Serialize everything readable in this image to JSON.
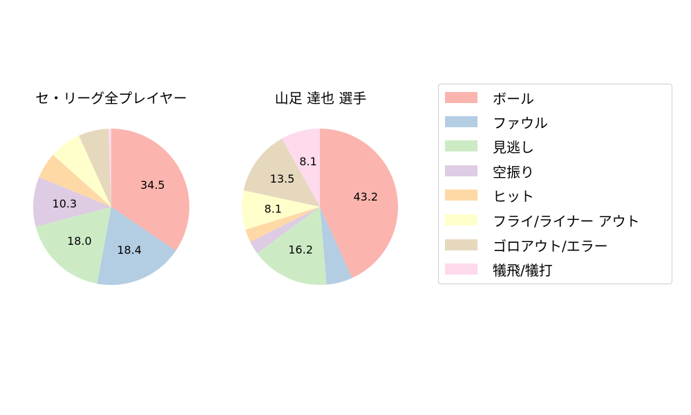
{
  "chart_data": [
    {
      "type": "pie",
      "title": "セ・リーグ全プレイヤー",
      "categories": [
        "ボール",
        "ファウル",
        "見逃し",
        "空振り",
        "ヒット",
        "フライ/ライナー アウト",
        "ゴロアウト/エラー",
        "犠飛/犠打"
      ],
      "values": [
        34.5,
        18.4,
        18.0,
        10.3,
        5.4,
        6.6,
        6.2,
        0.6
      ],
      "labels_shown": [
        "34.5",
        "18.4",
        "18.0",
        "10.3",
        "",
        "",
        "",
        ""
      ],
      "start_angle": 90,
      "direction": "clockwise"
    },
    {
      "type": "pie",
      "title": "山足 達也  選手",
      "categories": [
        "ボール",
        "ファウル",
        "見逃し",
        "空振り",
        "ヒット",
        "フライ/ライナー アウト",
        "ゴロアウト/エラー",
        "犠飛/犠打"
      ],
      "values": [
        43.2,
        5.4,
        16.2,
        2.7,
        2.7,
        8.1,
        13.5,
        8.1
      ],
      "labels_shown": [
        "43.2",
        "",
        "16.2",
        "",
        "",
        "8.1",
        "13.5",
        "8.1"
      ],
      "start_angle": 90,
      "direction": "clockwise"
    }
  ],
  "titles": {
    "left": "セ・リーグ全プレイヤー",
    "right": "山足 達也  選手"
  },
  "legend": {
    "items": [
      {
        "label": "ボール",
        "color": "#fbb4ae"
      },
      {
        "label": "ファウル",
        "color": "#b3cde3"
      },
      {
        "label": "見逃し",
        "color": "#ccebc5"
      },
      {
        "label": "空振り",
        "color": "#decbe4"
      },
      {
        "label": "ヒット",
        "color": "#fed9a6"
      },
      {
        "label": "フライ/ライナー アウト",
        "color": "#ffffcc"
      },
      {
        "label": "ゴロアウト/エラー",
        "color": "#e5d8bd"
      },
      {
        "label": "犠飛/犠打",
        "color": "#fddaec"
      }
    ]
  }
}
